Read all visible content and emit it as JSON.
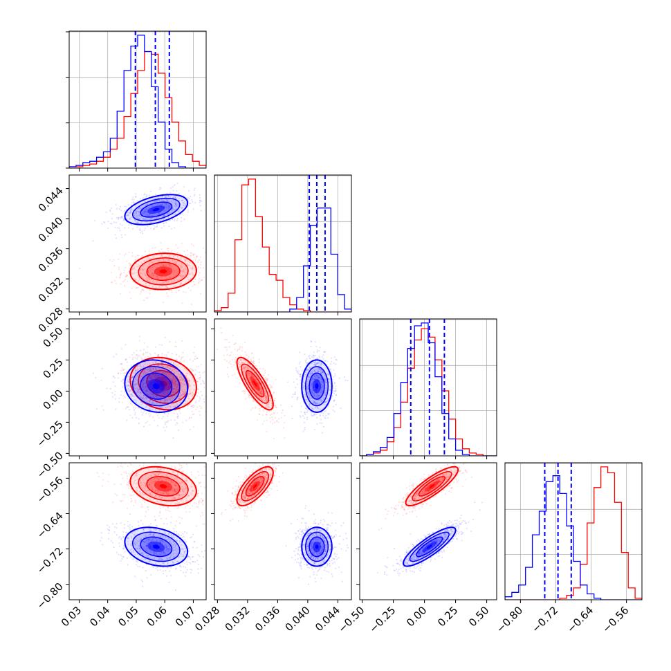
{
  "chart_data": {
    "type": "corner",
    "description_free": true,
    "colors": {
      "series_a": "#ff0000",
      "series_b": "#0000ff",
      "grid": "#b0b0b0"
    },
    "parameters": [
      {
        "range": [
          0.0265,
          0.0745
        ],
        "ticks": [
          0.03,
          0.04,
          0.05,
          0.06,
          0.07
        ],
        "tick_labels": [
          "0.03",
          "0.04",
          "0.05",
          "0.06",
          "0.07"
        ]
      },
      {
        "range": [
          0.0276,
          0.0458
        ],
        "ticks": [
          0.028,
          0.032,
          0.036,
          0.04,
          0.044
        ],
        "tick_labels": [
          "0.028",
          "0.032",
          "0.036",
          "0.040",
          "0.044"
        ]
      },
      {
        "range": [
          -0.52,
          0.58
        ],
        "ticks": [
          -0.5,
          -0.25,
          0.0,
          0.25,
          0.5
        ],
        "tick_labels": [
          "−0.50",
          "−0.25",
          "0.00",
          "0.25",
          "0.50"
        ]
      },
      {
        "range": [
          -0.835,
          -0.525
        ],
        "ticks": [
          -0.8,
          -0.72,
          -0.64,
          -0.56
        ],
        "tick_labels": [
          "−0.80",
          "−0.72",
          "−0.64",
          "−0.56"
        ]
      }
    ],
    "y_tick_labels_row1": [
      "0.028",
      "0.032",
      "0.036",
      "0.040",
      "0.044"
    ],
    "y_tick_labels_row2": [
      "−0.50",
      "−0.25",
      "0.00",
      "0.25",
      "0.50"
    ],
    "y_tick_labels_row3": [
      "−0.80",
      "−0.72",
      "−0.64",
      "−0.56"
    ],
    "series": [
      {
        "color": "red",
        "mean": [
          0.0595,
          0.033,
          0.06,
          -0.578
        ],
        "std": [
          0.0058,
          0.0012,
          0.105,
          0.022
        ],
        "hist": [
          {
            "edges_start": 0.0265,
            "bin": 0.0024,
            "counts": [
              1,
              1,
              2,
              3,
              5,
              8,
              14,
              22,
              38,
              55,
              72,
              86,
              84,
              70,
              52,
              34,
              20,
              10,
              5,
              2
            ]
          },
          {
            "edges_start": 0.0276,
            "bin": 0.00091,
            "counts": [
              1,
              3,
              13,
              50,
              88,
              92,
              66,
              45,
              26,
              22,
              10,
              5,
              2,
              1,
              0,
              0,
              0,
              0,
              0,
              0
            ]
          },
          {
            "edges_start": -0.52,
            "bin": 0.055,
            "counts": [
              0,
              1,
              2,
              4,
              10,
              20,
              38,
              62,
              82,
              90,
              84,
              68,
              46,
              26,
              12,
              5,
              2,
              1,
              0,
              0
            ]
          },
          {
            "edges_start": -0.835,
            "bin": 0.0155,
            "counts": [
              0,
              0,
              0,
              0,
              0,
              0,
              0,
              0,
              1,
              3,
              8,
              24,
              52,
              76,
              90,
              86,
              66,
              32,
              8,
              1
            ]
          }
        ]
      },
      {
        "color": "blue",
        "mean": [
          0.057,
          0.0412,
          0.04,
          -0.715
        ],
        "std": [
          0.0055,
          0.001,
          0.105,
          0.022
        ],
        "hist": [
          {
            "edges_start": 0.0265,
            "bin": 0.0024,
            "counts": [
              1,
              2,
              4,
              5,
              8,
              12,
              22,
              42,
              72,
              90,
              98,
              86,
              60,
              34,
              14,
              4,
              1,
              0,
              0,
              0
            ]
          },
          {
            "edges_start": 0.0276,
            "bin": 0.00091,
            "counts": [
              0,
              0,
              0,
              0,
              0,
              0,
              0,
              0,
              0,
              0,
              0,
              2,
              10,
              32,
              60,
              72,
              72,
              40,
              12,
              2
            ]
          },
          {
            "edges_start": -0.52,
            "bin": 0.055,
            "counts": [
              0,
              1,
              3,
              6,
              13,
              30,
              52,
              76,
              92,
              94,
              80,
              56,
              30,
              12,
              4,
              1,
              0,
              0,
              0,
              0
            ]
          },
          {
            "edges_start": -0.835,
            "bin": 0.0155,
            "counts": [
              2,
              5,
              10,
              22,
              44,
              60,
              80,
              84,
              72,
              50,
              26,
              10,
              4,
              1,
              0,
              0,
              0,
              0,
              0,
              0
            ]
          }
        ],
        "quantiles": [
          [
            0.0497,
            0.0567,
            0.0616
          ],
          [
            0.0402,
            0.0412,
            0.0423
          ],
          [
            -0.11,
            0.04,
            0.16
          ],
          [
            -0.745,
            -0.715,
            -0.685
          ]
        ]
      }
    ],
    "correlations": {
      "red": {
        "0-1": 0.05,
        "0-2": -0.15,
        "0-3": -0.25,
        "1-2": -0.8,
        "1-3": 0.7,
        "2-3": 0.85
      },
      "blue": {
        "0-1": 0.45,
        "0-2": -0.1,
        "0-3": -0.25,
        "1-2": 0.0,
        "1-3": 0.0,
        "2-3": 0.85
      }
    }
  }
}
